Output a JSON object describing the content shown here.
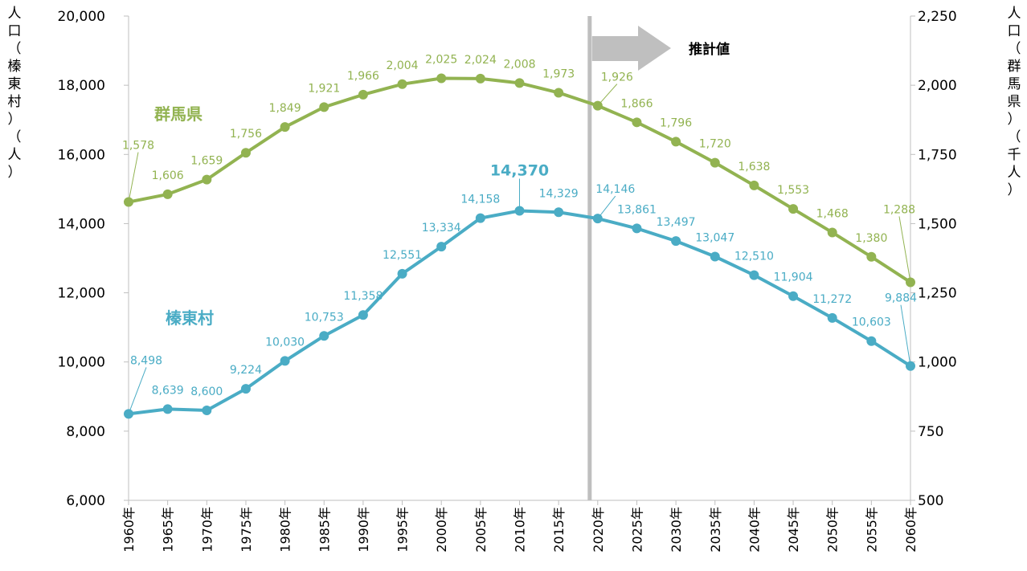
{
  "chart_data": {
    "type": "line",
    "x": [
      "1960年",
      "1965年",
      "1970年",
      "1975年",
      "1980年",
      "1985年",
      "1990年",
      "1995年",
      "2000年",
      "2005年",
      "2010年",
      "2015年",
      "2020年",
      "2025年",
      "2030年",
      "2035年",
      "2040年",
      "2045年",
      "2050年",
      "2055年",
      "2060年"
    ],
    "y_left": {
      "label": "人口（榛東村）（人）",
      "ylim": [
        6000,
        20000
      ],
      "ticks": [
        "6,000",
        "8,000",
        "10,000",
        "12,000",
        "14,000",
        "16,000",
        "18,000",
        "20,000"
      ]
    },
    "y_right": {
      "label": "人口（群馬県）（千人）",
      "ylim": [
        500,
        2250
      ],
      "ticks": [
        "500",
        "750",
        "1,000",
        "1,250",
        "1,500",
        "1,750",
        "2,000",
        "2,250"
      ]
    },
    "series": [
      {
        "name": "群馬県",
        "axis": "right",
        "color": "#92b351",
        "values": [
          1578,
          1606,
          1659,
          1756,
          1849,
          1921,
          1966,
          2004,
          2025,
          2024,
          2008,
          1973,
          1926,
          1866,
          1796,
          1720,
          1638,
          1553,
          1468,
          1380,
          1288
        ],
        "labels": [
          "1,578",
          "1,606",
          "1,659",
          "1,756",
          "1,849",
          "1,921",
          "1,966",
          "2,004",
          "2,025",
          "2,024",
          "2,008",
          "1,973",
          "1,926",
          "1,866",
          "1,796",
          "1,720",
          "1,638",
          "1,553",
          "1,468",
          "1,380",
          "1,288"
        ]
      },
      {
        "name": "榛東村",
        "axis": "left",
        "color": "#4aacc5",
        "values": [
          8498,
          8639,
          8600,
          9224,
          10030,
          10753,
          11358,
          12551,
          13334,
          14158,
          14370,
          14329,
          14146,
          13861,
          13497,
          13047,
          12510,
          11904,
          11272,
          10603,
          9884
        ],
        "labels": [
          "8,498",
          "8,639",
          "8,600",
          "9,224",
          "10,030",
          "10,753",
          "11,358",
          "12,551",
          "13,334",
          "14,158",
          "14,370",
          "14,329",
          "14,146",
          "13,861",
          "13,497",
          "13,047",
          "12,510",
          "11,904",
          "11,272",
          "10,603",
          "9,884"
        ]
      }
    ],
    "annotations": {
      "projection_label": "推計値",
      "projection_start": "2020年"
    },
    "grid": false
  }
}
